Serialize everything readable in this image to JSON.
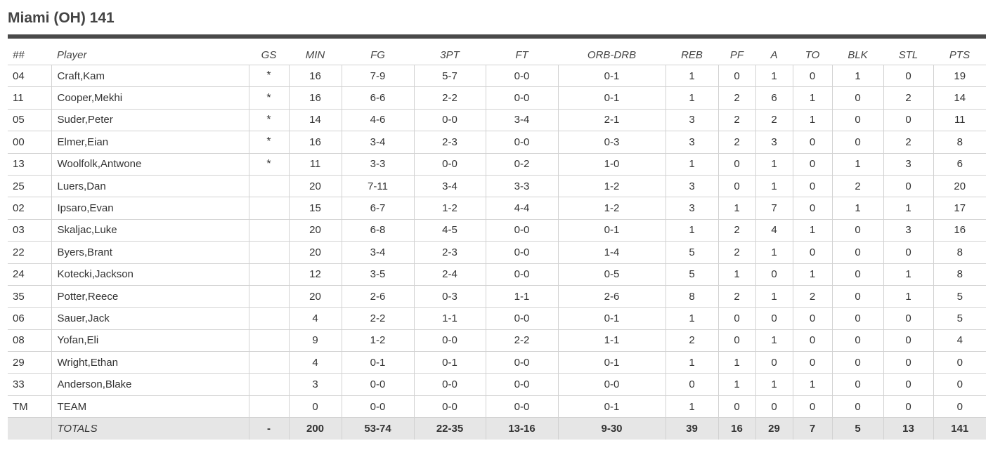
{
  "team_title": "Miami (OH) 141",
  "columns": [
    "##",
    "Player",
    "GS",
    "MIN",
    "FG",
    "3PT",
    "FT",
    "ORB-DRB",
    "REB",
    "PF",
    "A",
    "TO",
    "BLK",
    "STL",
    "PTS"
  ],
  "rows": [
    [
      "04",
      "Craft,Kam",
      "*",
      "16",
      "7-9",
      "5-7",
      "0-0",
      "0-1",
      "1",
      "0",
      "1",
      "0",
      "1",
      "0",
      "19"
    ],
    [
      "11",
      "Cooper,Mekhi",
      "*",
      "16",
      "6-6",
      "2-2",
      "0-0",
      "0-1",
      "1",
      "2",
      "6",
      "1",
      "0",
      "2",
      "14"
    ],
    [
      "05",
      "Suder,Peter",
      "*",
      "14",
      "4-6",
      "0-0",
      "3-4",
      "2-1",
      "3",
      "2",
      "2",
      "1",
      "0",
      "0",
      "11"
    ],
    [
      "00",
      "Elmer,Eian",
      "*",
      "16",
      "3-4",
      "2-3",
      "0-0",
      "0-3",
      "3",
      "2",
      "3",
      "0",
      "0",
      "2",
      "8"
    ],
    [
      "13",
      "Woolfolk,Antwone",
      "*",
      "11",
      "3-3",
      "0-0",
      "0-2",
      "1-0",
      "1",
      "0",
      "1",
      "0",
      "1",
      "3",
      "6"
    ],
    [
      "25",
      "Luers,Dan",
      "",
      "20",
      "7-11",
      "3-4",
      "3-3",
      "1-2",
      "3",
      "0",
      "1",
      "0",
      "2",
      "0",
      "20"
    ],
    [
      "02",
      "Ipsaro,Evan",
      "",
      "15",
      "6-7",
      "1-2",
      "4-4",
      "1-2",
      "3",
      "1",
      "7",
      "0",
      "1",
      "1",
      "17"
    ],
    [
      "03",
      "Skaljac,Luke",
      "",
      "20",
      "6-8",
      "4-5",
      "0-0",
      "0-1",
      "1",
      "2",
      "4",
      "1",
      "0",
      "3",
      "16"
    ],
    [
      "22",
      "Byers,Brant",
      "",
      "20",
      "3-4",
      "2-3",
      "0-0",
      "1-4",
      "5",
      "2",
      "1",
      "0",
      "0",
      "0",
      "8"
    ],
    [
      "24",
      "Kotecki,Jackson",
      "",
      "12",
      "3-5",
      "2-4",
      "0-0",
      "0-5",
      "5",
      "1",
      "0",
      "1",
      "0",
      "1",
      "8"
    ],
    [
      "35",
      "Potter,Reece",
      "",
      "20",
      "2-6",
      "0-3",
      "1-1",
      "2-6",
      "8",
      "2",
      "1",
      "2",
      "0",
      "1",
      "5"
    ],
    [
      "06",
      "Sauer,Jack",
      "",
      "4",
      "2-2",
      "1-1",
      "0-0",
      "0-1",
      "1",
      "0",
      "0",
      "0",
      "0",
      "0",
      "5"
    ],
    [
      "08",
      "Yofan,Eli",
      "",
      "9",
      "1-2",
      "0-0",
      "2-2",
      "1-1",
      "2",
      "0",
      "1",
      "0",
      "0",
      "0",
      "4"
    ],
    [
      "29",
      "Wright,Ethan",
      "",
      "4",
      "0-1",
      "0-1",
      "0-0",
      "0-1",
      "1",
      "1",
      "0",
      "0",
      "0",
      "0",
      "0"
    ],
    [
      "33",
      "Anderson,Blake",
      "",
      "3",
      "0-0",
      "0-0",
      "0-0",
      "0-0",
      "0",
      "1",
      "1",
      "1",
      "0",
      "0",
      "0"
    ],
    [
      "TM",
      "TEAM",
      "",
      "0",
      "0-0",
      "0-0",
      "0-0",
      "0-1",
      "1",
      "0",
      "0",
      "0",
      "0",
      "0",
      "0"
    ]
  ],
  "totals": [
    "",
    "TOTALS",
    "-",
    "200",
    "53-74",
    "22-35",
    "13-16",
    "9-30",
    "39",
    "16",
    "29",
    "7",
    "5",
    "13",
    "141"
  ]
}
